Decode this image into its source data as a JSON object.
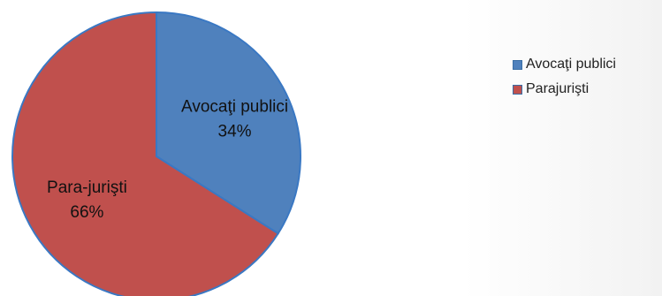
{
  "chart_data": {
    "type": "pie",
    "categories": [
      "Avocaţi publici",
      "Para-jurişti"
    ],
    "values": [
      34,
      66
    ],
    "slice_labels": [
      {
        "name": "Avocaţi publici",
        "percent": "34%"
      },
      {
        "name": "Para-jurişti",
        "percent": "66%"
      }
    ],
    "legend": {
      "placement": "right",
      "entries": [
        "Avocaţi publici",
        "Parajurişti"
      ]
    },
    "colors": [
      "#4f81bd",
      "#c0504d"
    ],
    "stroke_color": "#3a78c3",
    "start_angle": "top",
    "direction": "clockwise"
  }
}
